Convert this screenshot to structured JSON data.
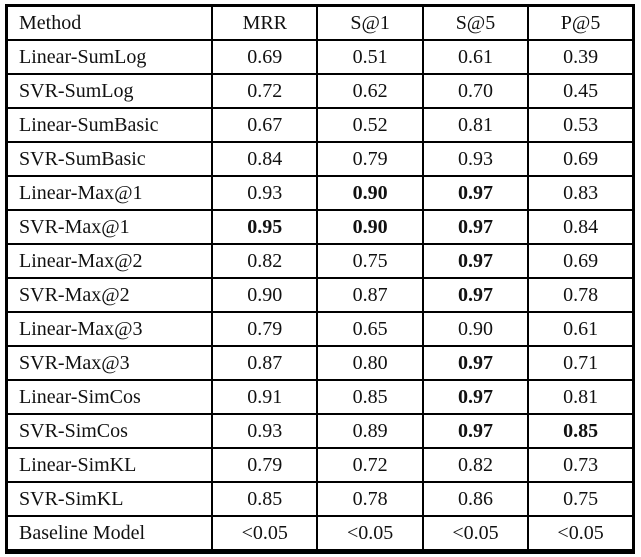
{
  "table": {
    "columns": [
      "Method",
      "MRR",
      "S@1",
      "S@5",
      "P@5"
    ],
    "rows": [
      {
        "method": "Linear-SumLog",
        "values": [
          "0.69",
          "0.51",
          "0.61",
          "0.39"
        ],
        "bold": [
          false,
          false,
          false,
          false
        ]
      },
      {
        "method": "SVR-SumLog",
        "values": [
          "0.72",
          "0.62",
          "0.70",
          "0.45"
        ],
        "bold": [
          false,
          false,
          false,
          false
        ]
      },
      {
        "method": "Linear-SumBasic",
        "values": [
          "0.67",
          "0.52",
          "0.81",
          "0.53"
        ],
        "bold": [
          false,
          false,
          false,
          false
        ]
      },
      {
        "method": "SVR-SumBasic",
        "values": [
          "0.84",
          "0.79",
          "0.93",
          "0.69"
        ],
        "bold": [
          false,
          false,
          false,
          false
        ]
      },
      {
        "method": "Linear-Max@1",
        "values": [
          "0.93",
          "0.90",
          "0.97",
          "0.83"
        ],
        "bold": [
          false,
          true,
          true,
          false
        ]
      },
      {
        "method": "SVR-Max@1",
        "values": [
          "0.95",
          "0.90",
          "0.97",
          "0.84"
        ],
        "bold": [
          true,
          true,
          true,
          false
        ]
      },
      {
        "method": "Linear-Max@2",
        "values": [
          "0.82",
          "0.75",
          "0.97",
          "0.69"
        ],
        "bold": [
          false,
          false,
          true,
          false
        ]
      },
      {
        "method": "SVR-Max@2",
        "values": [
          "0.90",
          "0.87",
          "0.97",
          "0.78"
        ],
        "bold": [
          false,
          false,
          true,
          false
        ]
      },
      {
        "method": "Linear-Max@3",
        "values": [
          "0.79",
          "0.65",
          "0.90",
          "0.61"
        ],
        "bold": [
          false,
          false,
          false,
          false
        ]
      },
      {
        "method": "SVR-Max@3",
        "values": [
          "0.87",
          "0.80",
          "0.97",
          "0.71"
        ],
        "bold": [
          false,
          false,
          true,
          false
        ]
      },
      {
        "method": "Linear-SimCos",
        "values": [
          "0.91",
          "0.85",
          "0.97",
          "0.81"
        ],
        "bold": [
          false,
          false,
          true,
          false
        ]
      },
      {
        "method": "SVR-SimCos",
        "values": [
          "0.93",
          "0.89",
          "0.97",
          "0.85"
        ],
        "bold": [
          false,
          false,
          true,
          true
        ]
      },
      {
        "method": "Linear-SimKL",
        "values": [
          "0.79",
          "0.72",
          "0.82",
          "0.73"
        ],
        "bold": [
          false,
          false,
          false,
          false
        ]
      },
      {
        "method": "SVR-SimKL",
        "values": [
          "0.85",
          "0.78",
          "0.86",
          "0.75"
        ],
        "bold": [
          false,
          false,
          false,
          false
        ]
      },
      {
        "method": "Baseline Model",
        "values": [
          "<0.05",
          "<0.05",
          "<0.05",
          "<0.05"
        ],
        "bold": [
          false,
          false,
          false,
          false
        ]
      }
    ]
  },
  "colors": {
    "border": "#000000",
    "text": "#111111",
    "background": "#ffffff"
  }
}
